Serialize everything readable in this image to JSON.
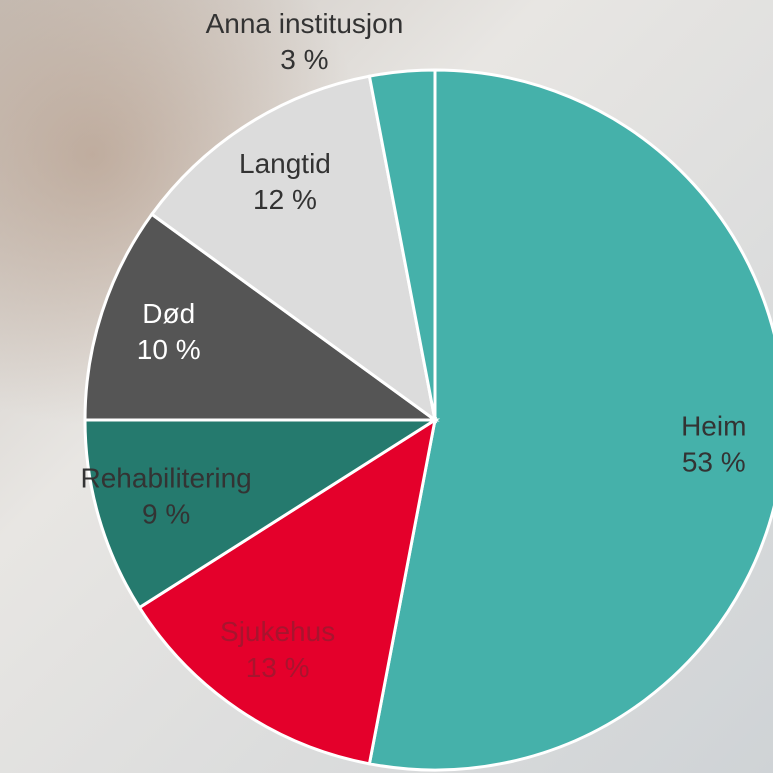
{
  "chart_data": {
    "type": "pie",
    "categories": [
      "Heim",
      "Sjukehus",
      "Rehabilitering",
      "Død",
      "Langtid",
      "Anna institusjon"
    ],
    "values": [
      53,
      13,
      9,
      10,
      12,
      3
    ],
    "value_labels": [
      "53 %",
      "13 %",
      "9 %",
      "10 %",
      "12 %",
      "3 %"
    ],
    "colors": [
      "#45b1aa",
      "#e4002b",
      "#257a6e",
      "#555555",
      "#dcdcdc",
      "#45b1aa"
    ]
  }
}
